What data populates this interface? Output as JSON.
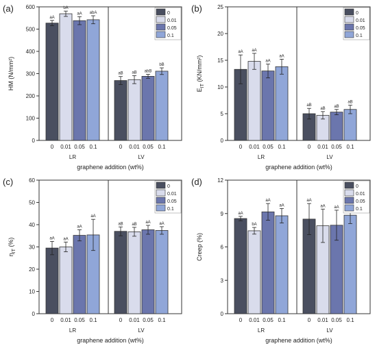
{
  "colors": [
    "#4a4f60",
    "#d9dcec",
    "#6b76ad",
    "#90a6d8"
  ],
  "chart_data": [
    {
      "panel_label": "(a)",
      "type": "bar",
      "ylabel": "HM (N/mm²)",
      "xlabel": "graphene addition (wt%)",
      "ylim": [
        0,
        600
      ],
      "yticks": [
        "0",
        "100",
        "200",
        "300",
        "400",
        "500",
        "600"
      ],
      "groups": [
        {
          "name": "LR",
          "x": [
            "0",
            "0.01",
            "0.05",
            "0.1"
          ],
          "values": [
            527,
            569,
            538,
            542
          ],
          "errors": [
            12,
            12,
            18,
            18
          ],
          "labels": [
            "aA",
            "bA",
            "aA",
            "abA"
          ]
        },
        {
          "name": "LV",
          "x": [
            "0",
            "0.01",
            "0.05",
            "0.1"
          ],
          "values": [
            269,
            273,
            288,
            311
          ],
          "errors": [
            18,
            18,
            9,
            15
          ],
          "labels": [
            "aB",
            "aB",
            "abB",
            "bB"
          ]
        }
      ],
      "legend": [
        "0",
        "0.01",
        "0.05",
        "0.1"
      ],
      "legend_position": "top-right"
    },
    {
      "panel_label": "(b)",
      "type": "bar",
      "ylabel": "E",
      "ylabel_sub": "IT",
      "ylabel_rest": " (KN/mm²)",
      "xlabel": "graphene addition (wt%)",
      "ylim": [
        0,
        25
      ],
      "yticks": [
        "0",
        "5",
        "10",
        "15",
        "20",
        "25"
      ],
      "groups": [
        {
          "name": "LR",
          "x": [
            "0",
            "0.01",
            "0.05",
            "0.1"
          ],
          "values": [
            13.3,
            14.8,
            13.0,
            13.8
          ],
          "errors": [
            2.7,
            1.5,
            1.3,
            1.4
          ],
          "labels": [
            "aA",
            "aA",
            "aA",
            "aA"
          ]
        },
        {
          "name": "LV",
          "x": [
            "0",
            "0.01",
            "0.05",
            "0.1"
          ],
          "values": [
            5.0,
            4.7,
            5.3,
            5.8
          ],
          "errors": [
            1.0,
            0.7,
            0.5,
            0.8
          ],
          "labels": [
            "aB",
            "aB",
            "aB",
            "aB"
          ]
        }
      ],
      "legend": [
        "0",
        "0.01",
        "0.05",
        "0.1"
      ],
      "legend_position": "top-right"
    },
    {
      "panel_label": "(c)",
      "type": "bar",
      "ylabel": "η",
      "ylabel_sub": "IT",
      "ylabel_rest": " (%)",
      "xlabel": "graphene addition (wt%)",
      "ylim": [
        0,
        60
      ],
      "yticks": [
        "0",
        "10",
        "20",
        "30",
        "40",
        "50",
        "60"
      ],
      "groups": [
        {
          "name": "LR",
          "x": [
            "0",
            "0.01",
            "0.05",
            "0.1"
          ],
          "values": [
            29.5,
            30.0,
            35.2,
            35.4
          ],
          "errors": [
            3.0,
            2.2,
            2.5,
            7.0
          ],
          "labels": [
            "aA",
            "aA",
            "aA",
            "aA"
          ]
        },
        {
          "name": "LV",
          "x": [
            "0",
            "0.01",
            "0.05",
            "0.1"
          ],
          "values": [
            37.0,
            36.8,
            37.7,
            37.4
          ],
          "errors": [
            2.0,
            2.0,
            2.0,
            1.7
          ],
          "labels": [
            "aB",
            "aB",
            "aA",
            "aA"
          ]
        }
      ],
      "legend": [
        "0",
        "0.01",
        "0.05",
        "0.1"
      ],
      "legend_position": "top-right"
    },
    {
      "panel_label": "(d)",
      "type": "bar",
      "ylabel": "Creep (%)",
      "xlabel": "graphene addition (wt%)",
      "ylim": [
        0,
        12
      ],
      "yticks": [
        "0",
        "3",
        "6",
        "9",
        "12"
      ],
      "groups": [
        {
          "name": "LR",
          "x": [
            "0",
            "0.01",
            "0.05",
            "0.1"
          ],
          "values": [
            8.55,
            7.45,
            9.15,
            8.8
          ],
          "errors": [
            0.2,
            0.3,
            0.75,
            0.65
          ],
          "labels": [
            "aA",
            "bA",
            "aA",
            "aA"
          ]
        },
        {
          "name": "LV",
          "x": [
            "0",
            "0.01",
            "0.05",
            "0.1"
          ],
          "values": [
            8.5,
            7.9,
            7.95,
            8.85
          ],
          "errors": [
            1.4,
            1.5,
            1.35,
            0.75
          ],
          "labels": [
            "aA",
            "aA",
            "aA",
            "aA"
          ]
        }
      ],
      "legend": [
        "0",
        "0.01",
        "0.05",
        "0.1"
      ],
      "legend_position": "top-right"
    }
  ]
}
